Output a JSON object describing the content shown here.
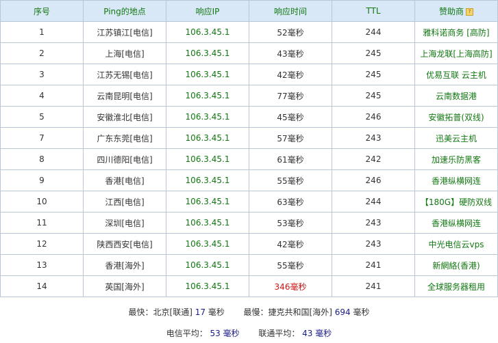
{
  "headers": [
    "序号",
    "Ping的地点",
    "响应IP",
    "响应时间",
    "TTL",
    "赞助商"
  ],
  "rows": [
    [
      "1",
      "江苏镇江[电信]",
      "106.3.45.1",
      "52毫秒",
      "244",
      "雅科诺商务 [高防]"
    ],
    [
      "2",
      "上海[电信]",
      "106.3.45.1",
      "43毫秒",
      "245",
      "上海龙联[上海高防]"
    ],
    [
      "3",
      "江苏无锡[电信]",
      "106.3.45.1",
      "42毫秒",
      "245",
      "优易互联 云主机"
    ],
    [
      "4",
      "云南昆明[电信]",
      "106.3.45.1",
      "77毫秒",
      "245",
      "云南数据港"
    ],
    [
      "5",
      "安徽淮北[电信]",
      "106.3.45.1",
      "45毫秒",
      "246",
      "安徽拓普(双线)"
    ],
    [
      "7",
      "广东东莞[电信]",
      "106.3.45.1",
      "57毫秒",
      "243",
      "迅美云主机"
    ],
    [
      "8",
      "四川德阳[电信]",
      "106.3.45.1",
      "61毫秒",
      "242",
      "加速乐防黑客"
    ],
    [
      "9",
      "香港[电信]",
      "106.3.45.1",
      "55毫秒",
      "246",
      "香港纵横网连"
    ],
    [
      "10",
      "江西[电信]",
      "106.3.45.1",
      "63毫秒",
      "244",
      "【180G】硬防双线"
    ],
    [
      "11",
      "深圳[电信]",
      "106.3.45.1",
      "53毫秒",
      "243",
      "香港纵横网连"
    ],
    [
      "12",
      "陕西西安[电信]",
      "106.3.45.1",
      "42毫秒",
      "243",
      "中光电信云vps"
    ],
    [
      "13",
      "香港[海外]",
      "106.3.45.1",
      "55毫秒",
      "241",
      "新網絡(香港)"
    ],
    [
      "14",
      "英国[海外]",
      "106.3.45.1",
      "346毫秒",
      "241",
      "全球服务器租用"
    ]
  ],
  "slow_rows": [
    12
  ],
  "summary": {
    "fastest_label": "最快：北京[联通]",
    "fastest_value": "17",
    "unit": "毫秒",
    "slowest_label": "最慢：捷克共和国[海外]",
    "slowest_value": "694",
    "telecom_label": "电信平均：",
    "telecom_value": "53",
    "unicom_label": "联通平均：",
    "unicom_value": "43"
  },
  "help_icon": "?"
}
